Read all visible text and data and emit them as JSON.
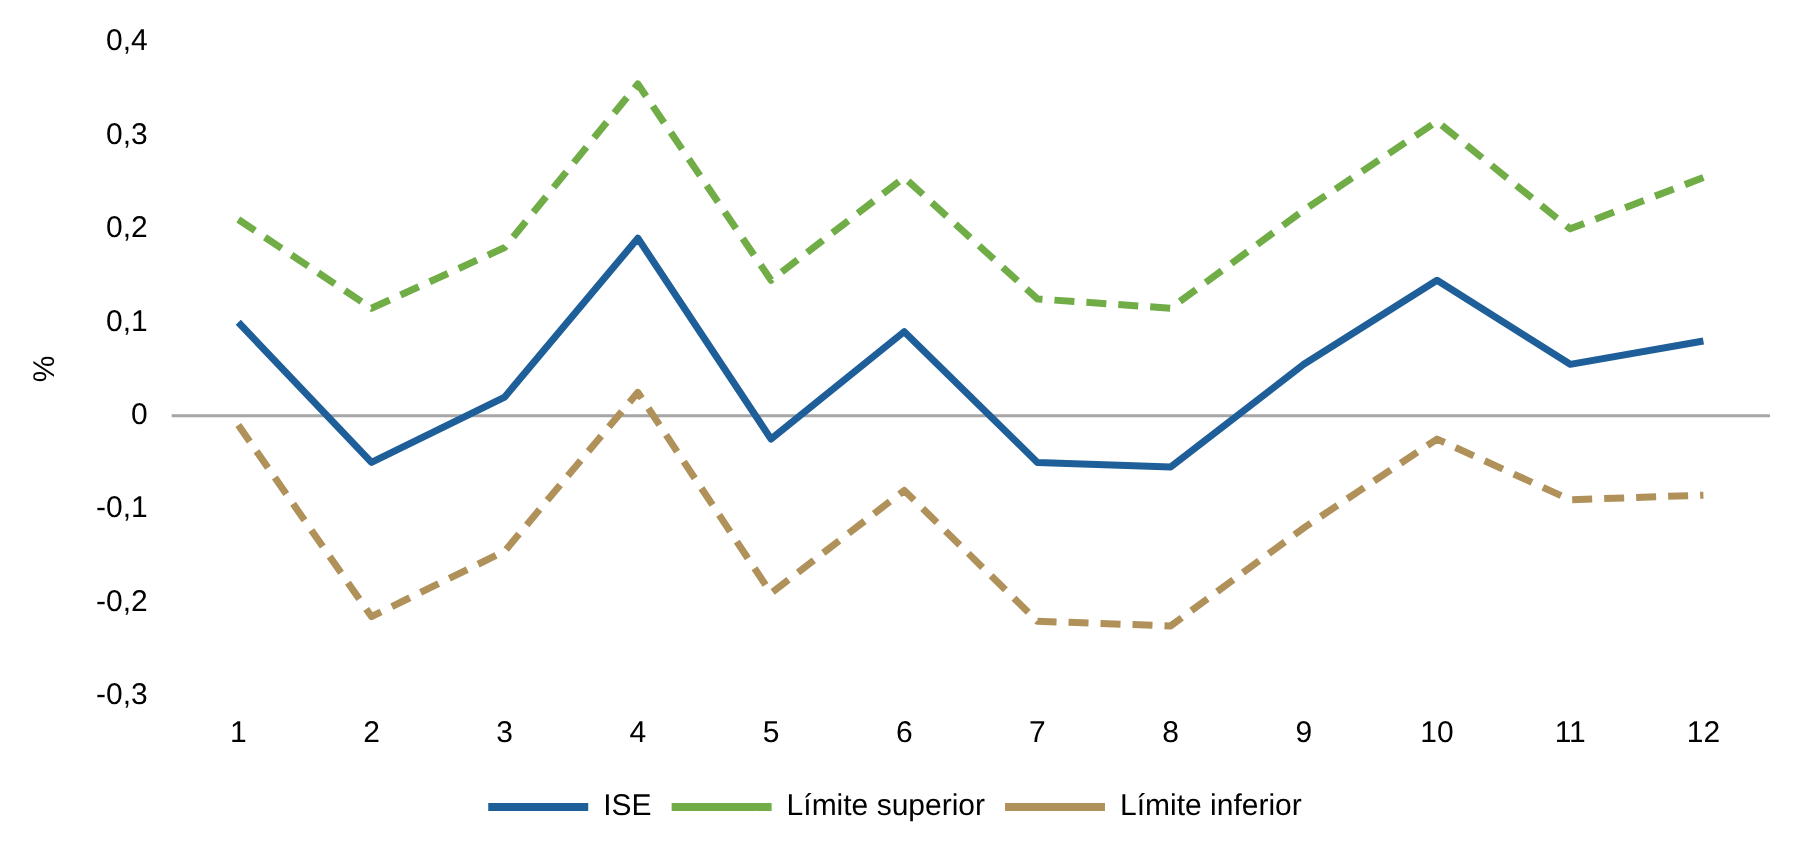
{
  "chart_data": {
    "type": "line",
    "ylabel": "%",
    "x": [
      1,
      2,
      3,
      4,
      5,
      6,
      7,
      8,
      9,
      10,
      11,
      12
    ],
    "xlim": [
      0.5,
      12.5
    ],
    "xticks": [
      1,
      2,
      3,
      4,
      5,
      6,
      7,
      8,
      9,
      10,
      11,
      12
    ],
    "series": [
      {
        "name": "ISE",
        "color": "#1f5f99",
        "line_style": "solid",
        "values": [
          0.1,
          -0.05,
          0.02,
          0.19,
          -0.025,
          0.09,
          -0.05,
          -0.055,
          0.055,
          0.145,
          0.055,
          0.08
        ]
      },
      {
        "name": "Límite superior",
        "color": "#70ad47",
        "line_style": "dashed",
        "values": [
          0.21,
          0.115,
          0.18,
          0.355,
          0.145,
          0.255,
          0.125,
          0.115,
          0.22,
          0.315,
          0.2,
          0.255
        ]
      },
      {
        "name": "Límite inferior",
        "color": "#b0915a",
        "line_style": "dashed",
        "values": [
          -0.01,
          -0.215,
          -0.145,
          0.025,
          -0.19,
          -0.08,
          -0.22,
          -0.225,
          -0.12,
          -0.025,
          -0.09,
          -0.085
        ]
      }
    ],
    "ylim": [
      -0.3,
      0.4
    ],
    "yticks": [
      {
        "value": -0.3,
        "label": "-0,3"
      },
      {
        "value": -0.2,
        "label": "-0,2"
      },
      {
        "value": -0.1,
        "label": "-0,1"
      },
      {
        "value": 0,
        "label": "0"
      },
      {
        "value": 0.1,
        "label": "0,1"
      },
      {
        "value": 0.2,
        "label": "0,2"
      },
      {
        "value": 0.3,
        "label": "0,3"
      },
      {
        "value": 0.4,
        "label": "0,4"
      }
    ],
    "ref_lines": [
      {
        "axis": "y",
        "value": 0,
        "color": "#a6a6a6"
      }
    ],
    "grid": false,
    "legend": "bottom",
    "marker": "none"
  }
}
